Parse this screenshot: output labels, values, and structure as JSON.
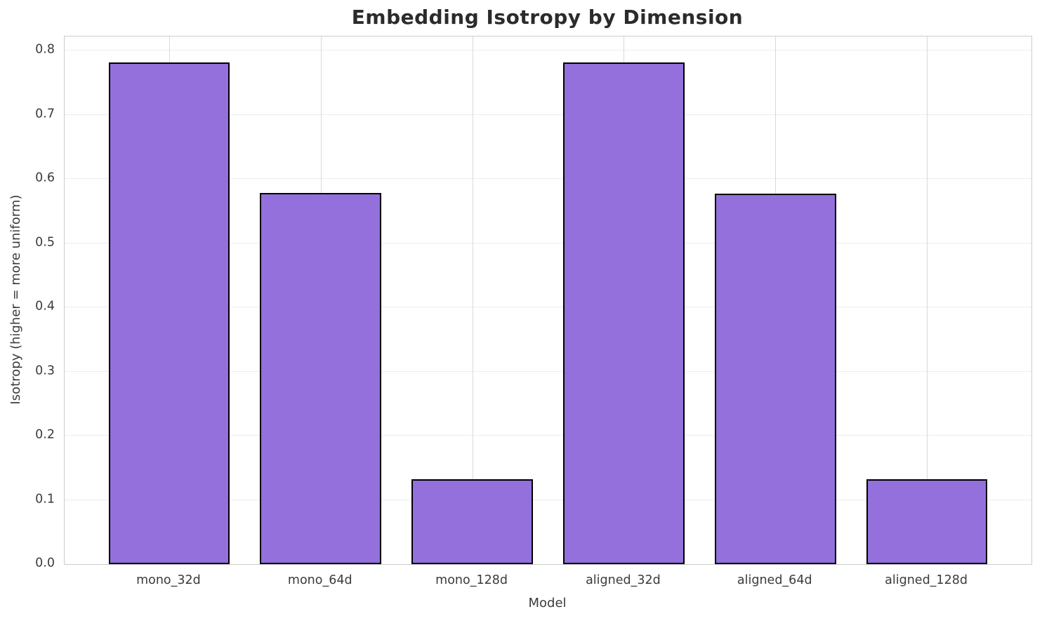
{
  "chart_data": {
    "type": "bar",
    "title": "Embedding Isotropy by Dimension",
    "xlabel": "Model",
    "ylabel": "Isotropy (higher = more uniform)",
    "categories": [
      "mono_32d",
      "mono_64d",
      "mono_128d",
      "aligned_32d",
      "aligned_64d",
      "aligned_128d"
    ],
    "values": [
      0.782,
      0.578,
      0.132,
      0.782,
      0.577,
      0.132
    ],
    "ylim": [
      0,
      0.822
    ],
    "yticks": [
      {
        "value": 0.0,
        "label": "0.0"
      },
      {
        "value": 0.1,
        "label": "0.1"
      },
      {
        "value": 0.2,
        "label": "0.2"
      },
      {
        "value": 0.3,
        "label": "0.3"
      },
      {
        "value": 0.4,
        "label": "0.4"
      },
      {
        "value": 0.5,
        "label": "0.5"
      },
      {
        "value": 0.6,
        "label": "0.6"
      },
      {
        "value": 0.7,
        "label": "0.7"
      },
      {
        "value": 0.8,
        "label": "0.8"
      }
    ],
    "bar_width_frac": 0.8,
    "x_margin_frac": 0.29,
    "grid": "both",
    "legend": "none",
    "colors": {
      "bar_fill": "#9370db",
      "bar_edge": "#000000",
      "grid_horizontal": "#ececec",
      "grid_vertical": "#d9d9d9",
      "spine": "#cccccc",
      "tick_text": "#3b3b3b",
      "title_text": "#2b2b2b",
      "background": "#ffffff"
    }
  }
}
